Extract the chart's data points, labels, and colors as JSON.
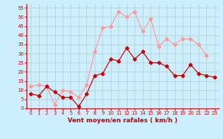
{
  "title": "",
  "xlabel": "Vent moyen/en rafales ( km/h )",
  "background_color": "#cceeff",
  "grid_color": "#aacccc",
  "x": [
    0,
    1,
    2,
    3,
    4,
    5,
    6,
    7,
    8,
    9,
    10,
    11,
    12,
    13,
    14,
    15,
    16,
    17,
    18,
    19,
    20,
    21,
    22,
    23
  ],
  "y_mean": [
    8,
    7,
    12,
    9,
    6,
    6,
    1,
    8,
    18,
    19,
    27,
    26,
    33,
    27,
    31,
    25,
    25,
    23,
    18,
    18,
    24,
    19,
    18,
    17
  ],
  "y_gust": [
    12,
    13,
    12,
    2,
    10,
    9,
    6,
    13,
    31,
    44,
    45,
    53,
    50,
    53,
    42,
    49,
    34,
    38,
    35,
    38,
    38,
    35,
    29,
    null
  ],
  "color_mean": "#cc0000",
  "color_gust": "#ff9999",
  "markersize": 2.5,
  "linewidth": 0.9,
  "ylim": [
    0,
    57
  ],
  "yticks": [
    0,
    5,
    10,
    15,
    20,
    25,
    30,
    35,
    40,
    45,
    50,
    55
  ],
  "xlim": [
    -0.5,
    23.5
  ],
  "xticks": [
    0,
    1,
    2,
    3,
    4,
    5,
    6,
    7,
    8,
    9,
    10,
    11,
    12,
    13,
    14,
    15,
    16,
    17,
    18,
    19,
    20,
    21,
    22,
    23
  ],
  "tick_fontsize": 5,
  "xlabel_fontsize": 6.5
}
